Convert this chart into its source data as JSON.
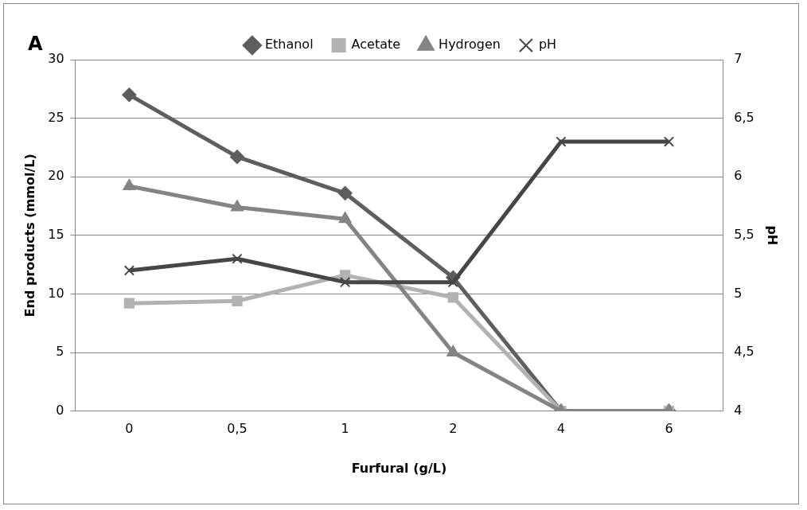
{
  "chart_data": {
    "type": "line",
    "title": "A",
    "xlabel": "Furfural (g/L)",
    "ylabel": "End products (mmol/L)",
    "y2label": "pH",
    "categories": [
      "0",
      "0,5",
      "1",
      "2",
      "4",
      "6"
    ],
    "series": [
      {
        "name": "Ethanol",
        "color": "#5e5e5e",
        "marker": "diamond",
        "values": [
          27,
          21.7,
          18.6,
          11.4,
          0,
          0
        ]
      },
      {
        "name": "Acetate",
        "color": "#b2b2b2",
        "marker": "square",
        "values": [
          9.2,
          9.4,
          11.6,
          9.7,
          0,
          0
        ]
      },
      {
        "name": "Hydrogen",
        "color": "#848484",
        "marker": "triangle",
        "values": [
          19.2,
          17.4,
          16.4,
          5,
          0,
          0
        ]
      },
      {
        "name": "pH",
        "color": "#464646",
        "marker": "cross",
        "axis": "y2",
        "values": [
          5.2,
          5.3,
          5.1,
          5.1,
          6.3,
          6.3
        ]
      }
    ],
    "ylim": [
      0,
      30
    ],
    "yticks": [
      0,
      5,
      10,
      15,
      20,
      25,
      30
    ],
    "y2lim": [
      4,
      7
    ],
    "y2ticks": [
      4,
      {
        "value": 4.5,
        "label": "4,5"
      },
      5,
      {
        "value": 5.5,
        "label": "5,5"
      },
      6,
      {
        "value": 6.5,
        "label": "6,5"
      },
      7
    ],
    "grid": "y",
    "legend": "top",
    "line_style": "solid"
  }
}
